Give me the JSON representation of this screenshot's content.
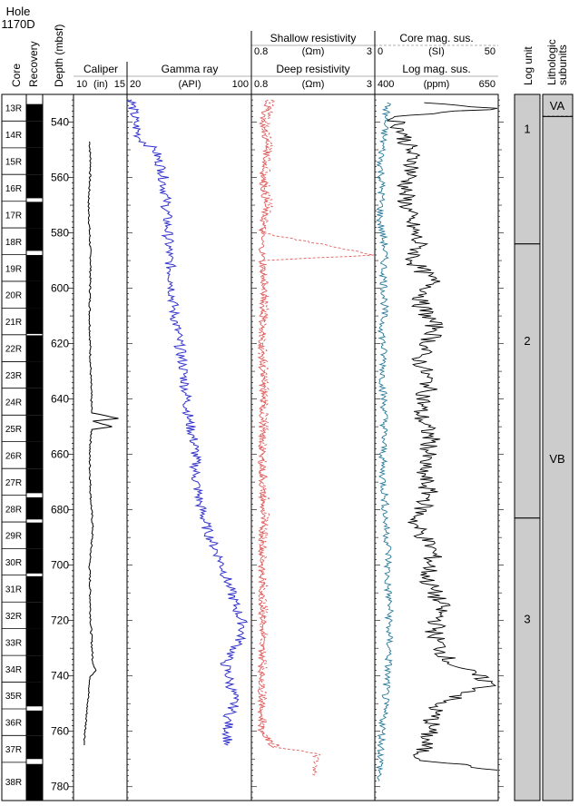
{
  "hole": {
    "line1": "Hole",
    "line2": "1170D"
  },
  "headers": {
    "core": "Core",
    "recovery": "Recovery",
    "depth": "Depth (mbsf)",
    "log_unit": "Log unit",
    "litho_line1": "Lithologic",
    "litho_line2": "subunits"
  },
  "tracks": {
    "caliper": {
      "title": "Caliper",
      "min": "10",
      "unit": "(in)",
      "max": "15"
    },
    "gamma": {
      "title": "Gamma ray",
      "min": "20",
      "unit": "(API)",
      "max": "100"
    },
    "shallow": {
      "title": "Shallow resistivity",
      "min": "0.8",
      "unit": "(Ωm)",
      "max": "3"
    },
    "deep": {
      "title": "Deep resistivity",
      "min": "0.8",
      "unit": "(Ωm)",
      "max": "3"
    },
    "coremag": {
      "title": "Core mag. sus.",
      "min": "0",
      "unit": "(SI)",
      "max": "50"
    },
    "logmag": {
      "title": "Log mag. sus.",
      "min": "400",
      "unit": "(ppm)",
      "max": "650"
    }
  },
  "colors": {
    "gamma": "#3333cc",
    "resistivity": "#e06060",
    "logmag": "#2a7a9a",
    "coremag": "#000000",
    "caliper": "#000000",
    "unitfill": "#cccccc"
  },
  "chart_data": {
    "type": "line",
    "y_axis": {
      "label": "Depth (mbsf)",
      "range": [
        530,
        785
      ],
      "inverted": true,
      "ticks": [
        540,
        560,
        580,
        600,
        620,
        640,
        660,
        680,
        700,
        720,
        740,
        760,
        780
      ]
    },
    "cores": [
      {
        "name": "13R",
        "top": 530.0,
        "bottom": 539.6,
        "recovery": [
          [
            533.5,
            539.6
          ]
        ]
      },
      {
        "name": "14R",
        "top": 539.6,
        "bottom": 549.3,
        "recovery": [
          [
            539.6,
            549.3
          ]
        ]
      },
      {
        "name": "15R",
        "top": 549.3,
        "bottom": 558.9,
        "recovery": [
          [
            549.3,
            558.9
          ]
        ]
      },
      {
        "name": "16R",
        "top": 558.9,
        "bottom": 568.6,
        "recovery": [
          [
            558.9,
            567.5
          ]
        ]
      },
      {
        "name": "17R",
        "top": 568.6,
        "bottom": 578.2,
        "recovery": [
          [
            568.8,
            578.2
          ]
        ]
      },
      {
        "name": "18R",
        "top": 578.2,
        "bottom": 587.9,
        "recovery": [
          [
            578.2,
            586.5
          ]
        ]
      },
      {
        "name": "19R",
        "top": 587.9,
        "bottom": 597.5,
        "recovery": [
          [
            588.0,
            597.5
          ]
        ]
      },
      {
        "name": "20R",
        "top": 597.5,
        "bottom": 607.2,
        "recovery": [
          [
            597.5,
            607.2
          ]
        ]
      },
      {
        "name": "21R",
        "top": 607.2,
        "bottom": 616.8,
        "recovery": [
          [
            607.2,
            616.5
          ]
        ]
      },
      {
        "name": "22R",
        "top": 616.8,
        "bottom": 626.5,
        "recovery": [
          [
            617.0,
            626.5
          ]
        ]
      },
      {
        "name": "23R",
        "top": 626.5,
        "bottom": 636.1,
        "recovery": [
          [
            626.5,
            636.1
          ]
        ]
      },
      {
        "name": "24R",
        "top": 636.1,
        "bottom": 645.8,
        "recovery": [
          [
            636.1,
            645.8
          ]
        ]
      },
      {
        "name": "25R",
        "top": 645.8,
        "bottom": 655.4,
        "recovery": [
          [
            645.8,
            655.4
          ]
        ]
      },
      {
        "name": "26R",
        "top": 655.4,
        "bottom": 665.1,
        "recovery": [
          [
            655.4,
            665.1
          ]
        ]
      },
      {
        "name": "27R",
        "top": 665.1,
        "bottom": 674.7,
        "recovery": [
          [
            665.1,
            674.0
          ]
        ]
      },
      {
        "name": "28R",
        "top": 674.7,
        "bottom": 684.4,
        "recovery": [
          [
            675.5,
            683.5
          ]
        ]
      },
      {
        "name": "29R",
        "top": 684.4,
        "bottom": 694.0,
        "recovery": [
          [
            684.6,
            694.0
          ]
        ]
      },
      {
        "name": "30R",
        "top": 694.0,
        "bottom": 703.6,
        "recovery": [
          [
            694.0,
            703.0
          ]
        ]
      },
      {
        "name": "31R",
        "top": 703.6,
        "bottom": 713.3,
        "recovery": [
          [
            704.0,
            713.3
          ]
        ]
      },
      {
        "name": "32R",
        "top": 713.3,
        "bottom": 722.9,
        "recovery": [
          [
            713.3,
            722.9
          ]
        ]
      },
      {
        "name": "33R",
        "top": 722.9,
        "bottom": 732.6,
        "recovery": [
          [
            722.9,
            732.6
          ]
        ]
      },
      {
        "name": "34R",
        "top": 732.6,
        "bottom": 742.2,
        "recovery": [
          [
            732.6,
            742.2
          ]
        ]
      },
      {
        "name": "35R",
        "top": 742.2,
        "bottom": 751.9,
        "recovery": [
          [
            742.2,
            751.0
          ]
        ]
      },
      {
        "name": "36R",
        "top": 751.9,
        "bottom": 761.5,
        "recovery": [
          [
            752.5,
            761.5
          ]
        ]
      },
      {
        "name": "37R",
        "top": 761.5,
        "bottom": 771.2,
        "recovery": [
          [
            761.5,
            770.0
          ]
        ]
      },
      {
        "name": "38R",
        "top": 771.2,
        "bottom": 785.0,
        "recovery": [
          [
            771.8,
            785.0
          ]
        ]
      }
    ],
    "log_units": [
      {
        "label": "1",
        "top": 530,
        "bottom": 584
      },
      {
        "label": "2",
        "top": 584,
        "bottom": 683
      },
      {
        "label": "3",
        "top": 683,
        "bottom": 785
      }
    ],
    "lithologic_subunits": [
      {
        "label": "VA",
        "top": 530,
        "bottom": 538,
        "lower_boundary": "dashed"
      },
      {
        "label": "VB",
        "top": 538,
        "bottom": 785
      }
    ],
    "series": [
      {
        "name": "Caliper",
        "unit": "in",
        "range": [
          10,
          15
        ],
        "points": [
          [
            547,
            11.5
          ],
          [
            555,
            11.6
          ],
          [
            570,
            11.4
          ],
          [
            590,
            11.6
          ],
          [
            610,
            11.5
          ],
          [
            630,
            11.6
          ],
          [
            645,
            11.7
          ],
          [
            647,
            14.2
          ],
          [
            648,
            11.8
          ],
          [
            650,
            13.6
          ],
          [
            651,
            11.7
          ],
          [
            660,
            11.5
          ],
          [
            675,
            11.6
          ],
          [
            687,
            11.8
          ],
          [
            700,
            11.5
          ],
          [
            720,
            11.6
          ],
          [
            735,
            11.8
          ],
          [
            738,
            12.1
          ],
          [
            740,
            11.6
          ],
          [
            750,
            11.3
          ],
          [
            765,
            11.0
          ]
        ]
      },
      {
        "name": "Gamma ray",
        "unit": "API",
        "range": [
          20,
          100
        ],
        "points": [
          [
            532,
            23
          ],
          [
            540,
            25
          ],
          [
            546,
            28
          ],
          [
            550,
            38
          ],
          [
            558,
            43
          ],
          [
            568,
            45
          ],
          [
            578,
            46
          ],
          [
            588,
            47
          ],
          [
            598,
            49
          ],
          [
            608,
            50
          ],
          [
            618,
            53
          ],
          [
            628,
            56
          ],
          [
            638,
            58
          ],
          [
            648,
            60
          ],
          [
            658,
            64
          ],
          [
            668,
            64
          ],
          [
            678,
            67
          ],
          [
            688,
            72
          ],
          [
            698,
            80
          ],
          [
            708,
            86
          ],
          [
            715,
            90
          ],
          [
            722,
            95
          ],
          [
            728,
            92
          ],
          [
            735,
            83
          ],
          [
            742,
            86
          ],
          [
            748,
            89
          ],
          [
            752,
            88
          ],
          [
            755,
            85
          ],
          [
            765,
            85
          ]
        ]
      },
      {
        "name": "Shallow resistivity",
        "unit": "Ωm",
        "range": [
          0.8,
          3
        ],
        "points": [
          [
            532,
            1.15
          ],
          [
            540,
            1.05
          ],
          [
            550,
            1.12
          ],
          [
            560,
            1.05
          ],
          [
            570,
            1.1
          ],
          [
            580,
            1.0
          ],
          [
            588,
            3.0
          ],
          [
            590,
            1.0
          ],
          [
            600,
            1.05
          ],
          [
            620,
            1.0
          ],
          [
            640,
            1.05
          ],
          [
            660,
            1.0
          ],
          [
            680,
            1.05
          ],
          [
            700,
            1.0
          ],
          [
            720,
            1.02
          ],
          [
            740,
            1.0
          ],
          [
            760,
            1.0
          ],
          [
            766,
            1.3
          ],
          [
            768,
            1.95
          ],
          [
            776,
            1.95
          ]
        ]
      },
      {
        "name": "Deep resistivity",
        "unit": "Ωm",
        "range": [
          0.8,
          3
        ],
        "points": [
          [
            532,
            1.1
          ],
          [
            540,
            1.0
          ],
          [
            550,
            1.08
          ],
          [
            560,
            1.0
          ],
          [
            570,
            1.05
          ],
          [
            580,
            0.98
          ],
          [
            590,
            1.0
          ],
          [
            600,
            1.02
          ],
          [
            620,
            0.98
          ],
          [
            640,
            1.0
          ],
          [
            660,
            0.98
          ],
          [
            680,
            1.0
          ],
          [
            700,
            0.98
          ],
          [
            720,
            1.0
          ],
          [
            740,
            0.98
          ],
          [
            760,
            0.98
          ],
          [
            766,
            1.2
          ]
        ]
      },
      {
        "name": "Core mag. sus.",
        "unit": "SI",
        "range": [
          0,
          50
        ],
        "points": [
          [
            533,
            20
          ],
          [
            535,
            50
          ],
          [
            538,
            8
          ],
          [
            545,
            12
          ],
          [
            555,
            16
          ],
          [
            565,
            12
          ],
          [
            575,
            14
          ],
          [
            585,
            18
          ],
          [
            590,
            15
          ],
          [
            598,
            24
          ],
          [
            605,
            18
          ],
          [
            615,
            25
          ],
          [
            625,
            18
          ],
          [
            635,
            22
          ],
          [
            645,
            18
          ],
          [
            655,
            23
          ],
          [
            665,
            19
          ],
          [
            675,
            22
          ],
          [
            685,
            16
          ],
          [
            695,
            24
          ],
          [
            705,
            21
          ],
          [
            715,
            27
          ],
          [
            725,
            24
          ],
          [
            735,
            30
          ],
          [
            743,
            48
          ],
          [
            750,
            25
          ],
          [
            760,
            22
          ],
          [
            770,
            18
          ],
          [
            774,
            50
          ]
        ]
      },
      {
        "name": "Log mag. sus.",
        "unit": "ppm",
        "range": [
          400,
          650
        ],
        "points": [
          [
            533,
            425
          ],
          [
            545,
            418
          ],
          [
            555,
            412
          ],
          [
            565,
            414
          ],
          [
            575,
            410
          ],
          [
            585,
            420
          ],
          [
            595,
            418
          ],
          [
            605,
            420
          ],
          [
            615,
            415
          ],
          [
            625,
            418
          ],
          [
            635,
            416
          ],
          [
            645,
            420
          ],
          [
            655,
            418
          ],
          [
            665,
            415
          ],
          [
            675,
            420
          ],
          [
            685,
            422
          ],
          [
            695,
            428
          ],
          [
            705,
            425
          ],
          [
            715,
            430
          ],
          [
            725,
            428
          ],
          [
            730,
            430
          ],
          [
            740,
            425
          ],
          [
            750,
            420
          ],
          [
            760,
            415
          ],
          [
            770,
            412
          ],
          [
            778,
            408
          ]
        ]
      }
    ]
  }
}
